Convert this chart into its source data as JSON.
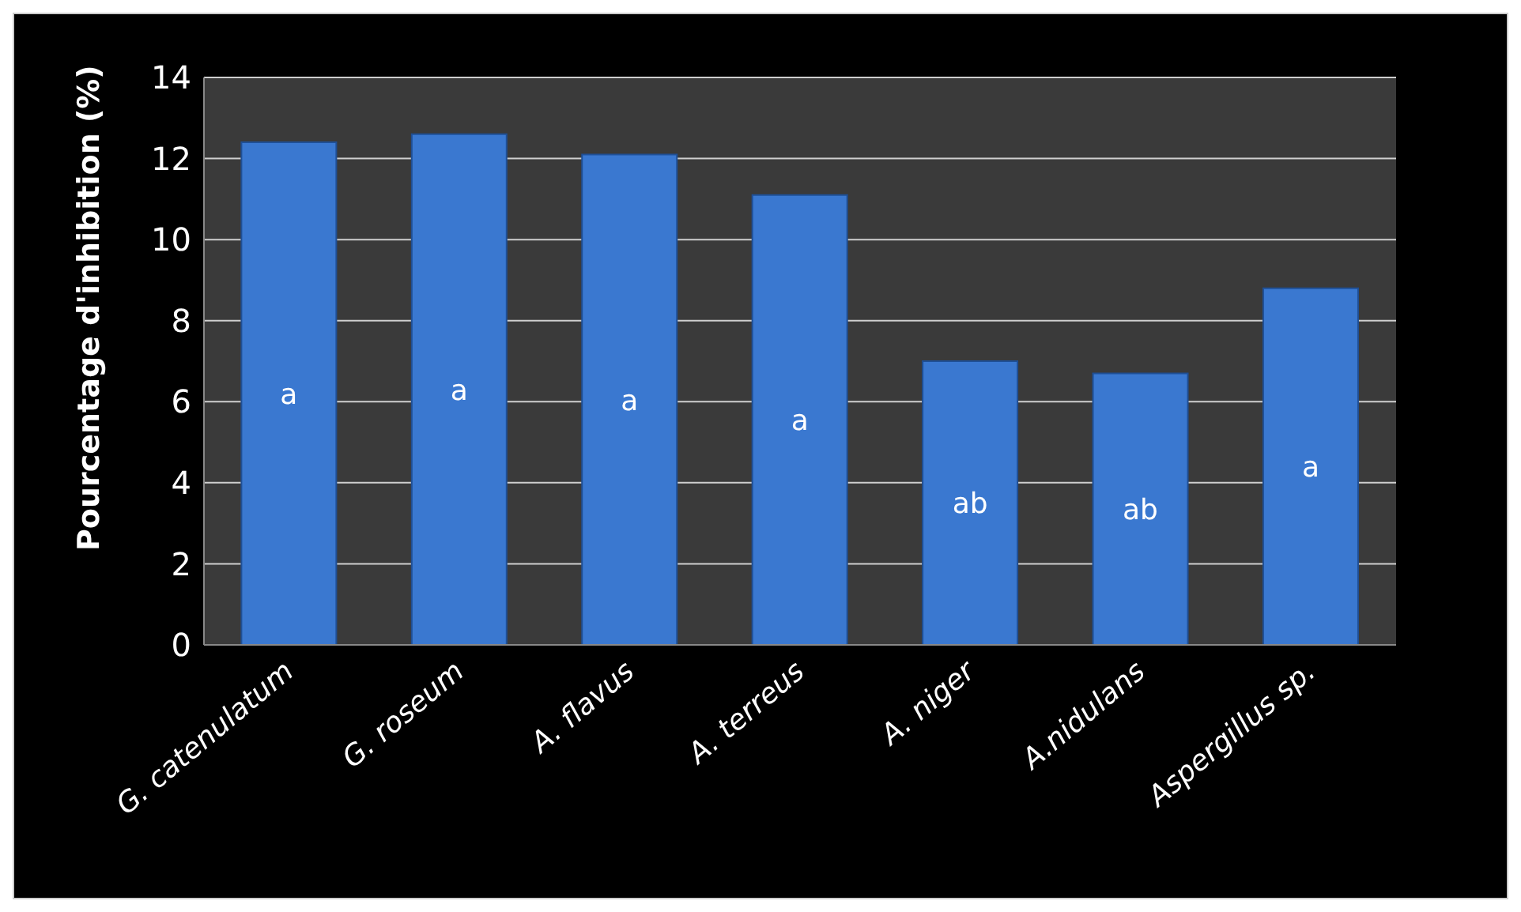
{
  "chart_data": {
    "type": "bar",
    "ylabel": "Pourcentage d'inhibition (%)",
    "categories": [
      "G. catenulatum",
      "G. roseum",
      "A. flavus",
      "A. terreus",
      "A. niger",
      "A.nidulans",
      "Aspergillus sp."
    ],
    "values": [
      12.4,
      12.6,
      12.1,
      11.1,
      7.0,
      6.7,
      8.8
    ],
    "value_labels": [
      "a",
      "a",
      "a",
      "a",
      "ab",
      "ab",
      "a"
    ],
    "color": "#3a78d0",
    "ylim": [
      0,
      14
    ],
    "yticks": [
      0,
      2,
      4,
      6,
      8,
      10,
      12,
      14
    ],
    "grid": "y"
  }
}
